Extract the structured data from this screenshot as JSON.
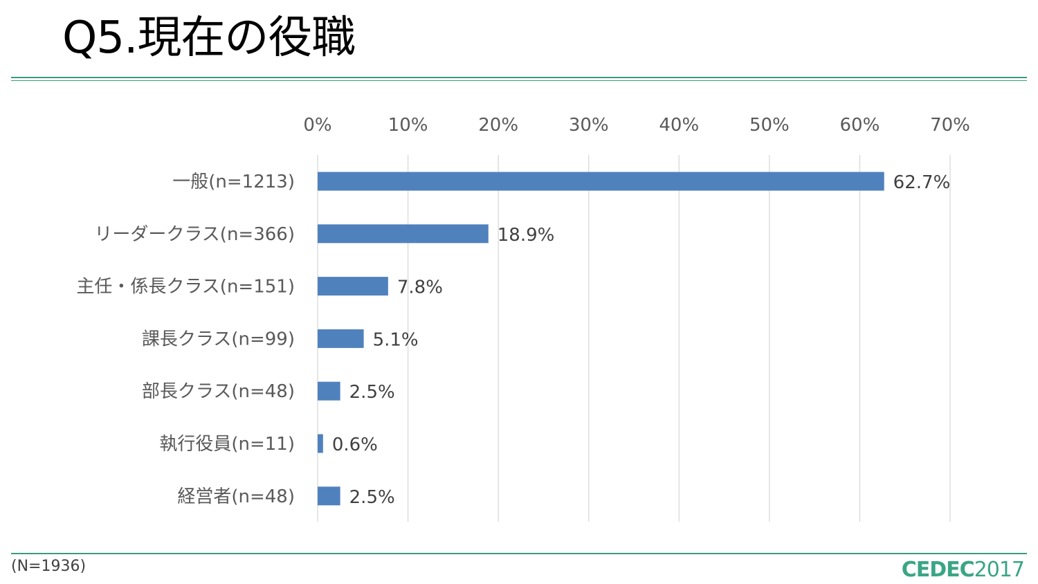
{
  "header": {
    "title": "Q5.現在の役職"
  },
  "footer": {
    "note": "(N=1936)",
    "logo_text": "CEDEC",
    "logo_year": "2017"
  },
  "colors": {
    "bar": "#4f81bd",
    "rule": "#3a9a7e",
    "grid": "#d9d9d9",
    "logo": "#3aa585"
  },
  "chart_data": {
    "type": "bar",
    "orientation": "horizontal",
    "categories": [
      "一般(n=1213)",
      "リーダークラス(n=366)",
      "主任・係長クラス(n=151)",
      "課長クラス(n=99)",
      "部長クラス(n=48)",
      "執行役員(n=11)",
      "経営者(n=48)"
    ],
    "values": [
      62.7,
      18.9,
      7.8,
      5.1,
      2.5,
      0.6,
      2.5
    ],
    "value_labels": [
      "62.7%",
      "18.9%",
      "7.8%",
      "5.1%",
      "2.5%",
      "0.6%",
      "2.5%"
    ],
    "x_ticks": [
      "0%",
      "10%",
      "20%",
      "30%",
      "40%",
      "50%",
      "60%",
      "70%"
    ],
    "xlim": [
      0,
      70
    ],
    "x_axis_position": "top",
    "grid": true,
    "title": "",
    "xlabel": "",
    "ylabel": ""
  }
}
